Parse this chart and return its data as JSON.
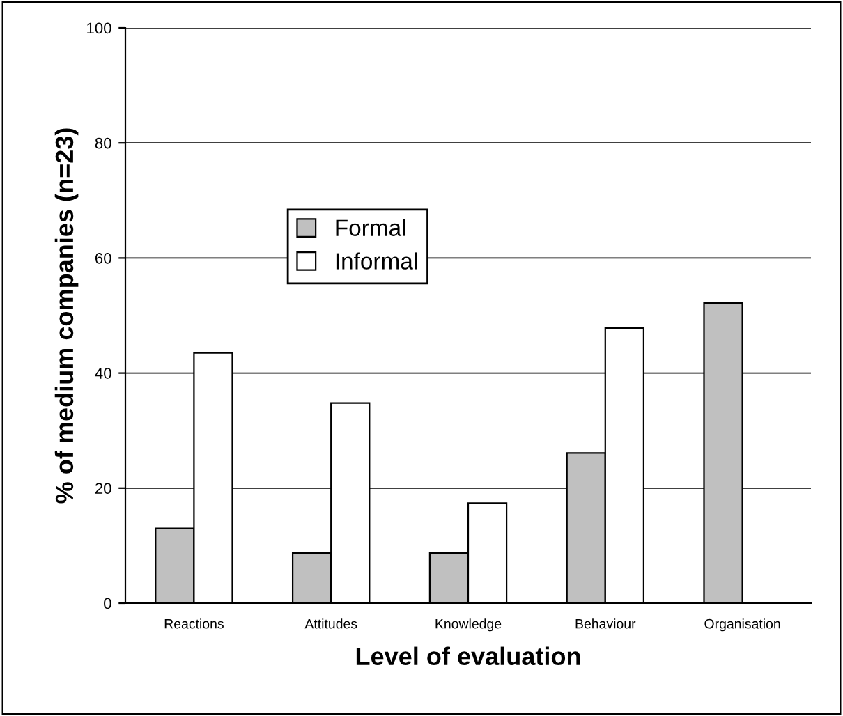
{
  "chart_data": {
    "type": "bar",
    "xlabel": "Level of evaluation",
    "ylabel": "% of medium companies (n=23)",
    "categories": [
      "Reactions",
      "Attitudes",
      "Knowledge",
      "Behaviour",
      "Organisation"
    ],
    "series": [
      {
        "name": "Formal",
        "color": "#c0c0c0",
        "values": [
          13.0,
          8.7,
          8.7,
          26.1,
          52.2
        ]
      },
      {
        "name": "Informal",
        "color": "#ffffff",
        "values": [
          43.5,
          34.8,
          17.4,
          47.8,
          null
        ]
      }
    ],
    "ylim": [
      0,
      100
    ],
    "yticks": [
      0,
      20,
      40,
      60,
      80,
      100
    ],
    "grid": "y",
    "legend": "center left"
  }
}
